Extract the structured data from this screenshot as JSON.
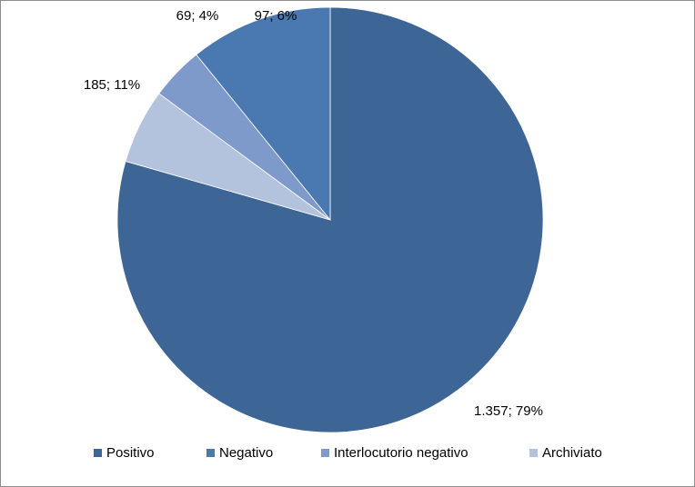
{
  "chart_data": {
    "type": "pie",
    "title": "",
    "legend_position": "bottom",
    "slices": [
      {
        "name": "Positivo",
        "value": 1357,
        "percent": 79,
        "label": "1.357; 79%",
        "color": "#3d6596"
      },
      {
        "name": "Archiviato",
        "value": 97,
        "percent": 6,
        "label": "97; 6%",
        "color": "#b3c2dd"
      },
      {
        "name": "Interlocutorio negativo",
        "value": 69,
        "percent": 4,
        "label": "69; 4%",
        "color": "#7e9acb"
      },
      {
        "name": "Negativo",
        "value": 185,
        "percent": 11,
        "label": "185; 11%",
        "color": "#4a78b0"
      }
    ]
  },
  "legend": {
    "items": [
      {
        "label": "Positivo",
        "color": "#3d6596"
      },
      {
        "label": "Negativo",
        "color": "#4a78b0"
      },
      {
        "label": "Interlocutorio negativo",
        "color": "#7e9acb"
      },
      {
        "label": "Archiviato",
        "color": "#b3c2dd"
      }
    ]
  }
}
